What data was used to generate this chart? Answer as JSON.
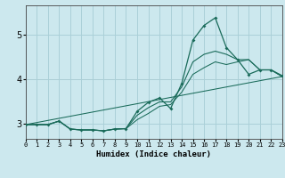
{
  "xlabel": "Humidex (Indice chaleur)",
  "bg_color": "#cce8ee",
  "grid_color": "#aad0d8",
  "line_color": "#1a6b5a",
  "red_line_y": 4.0,
  "xlim": [
    0,
    23
  ],
  "ylim": [
    2.65,
    5.65
  ],
  "yticks": [
    3,
    4,
    5
  ],
  "xticks": [
    0,
    1,
    2,
    3,
    4,
    5,
    6,
    7,
    8,
    9,
    10,
    11,
    12,
    13,
    14,
    15,
    16,
    17,
    18,
    19,
    20,
    21,
    22,
    23
  ],
  "line1_x": [
    0,
    1,
    2,
    3,
    4,
    5,
    6,
    7,
    8,
    9,
    10,
    11,
    12,
    13,
    14,
    15,
    16,
    17,
    18,
    19,
    20,
    21,
    22,
    23
  ],
  "line1_y": [
    2.97,
    2.97,
    2.97,
    3.05,
    2.87,
    2.85,
    2.85,
    2.83,
    2.87,
    2.88,
    3.27,
    3.47,
    3.57,
    3.33,
    3.9,
    4.87,
    5.2,
    5.37,
    4.7,
    4.43,
    4.1,
    4.2,
    4.2,
    4.07
  ],
  "line2_x": [
    0,
    1,
    2,
    3,
    4,
    5,
    6,
    7,
    8,
    9,
    10,
    11,
    12,
    13,
    14,
    15,
    16,
    17,
    18,
    19,
    20,
    21,
    22,
    23
  ],
  "line2_y": [
    2.97,
    2.97,
    2.97,
    3.05,
    2.87,
    2.85,
    2.85,
    2.83,
    2.87,
    2.88,
    3.18,
    3.35,
    3.48,
    3.48,
    3.82,
    4.38,
    4.55,
    4.62,
    4.55,
    4.43,
    4.43,
    4.2,
    4.2,
    4.05
  ],
  "line3_x": [
    0,
    1,
    2,
    3,
    4,
    5,
    6,
    7,
    8,
    9,
    10,
    11,
    12,
    13,
    14,
    15,
    16,
    17,
    18,
    19,
    20,
    21,
    22,
    23
  ],
  "line3_y": [
    2.97,
    2.97,
    2.97,
    3.05,
    2.87,
    2.85,
    2.85,
    2.83,
    2.87,
    2.88,
    3.08,
    3.22,
    3.38,
    3.42,
    3.7,
    4.1,
    4.25,
    4.38,
    4.32,
    4.38,
    4.43,
    4.2,
    4.2,
    4.05
  ],
  "line4_x": [
    0,
    23
  ],
  "line4_y": [
    2.97,
    4.05
  ]
}
